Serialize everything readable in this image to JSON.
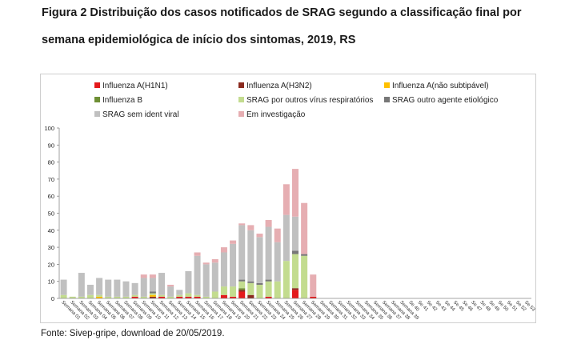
{
  "title_line1": "Figura 2 Distribuição dos casos notificados de SRAG segundo a classificação final por",
  "title_line2": "semana epidemiológica de início dos sintomas, 2019, RS",
  "source": "Fonte: Sivep-gripe, download de 20/05/2019.",
  "chart_data": {
    "type": "bar",
    "stacked": true,
    "title": "",
    "xlabel": "",
    "ylabel": "",
    "ylim": [
      0,
      100
    ],
    "yticks": [
      0,
      10,
      20,
      30,
      40,
      50,
      60,
      70,
      80,
      90,
      100
    ],
    "legend_position": "top",
    "grid": false,
    "categories": [
      "Semana 01",
      "Semana 02",
      "Semana 03",
      "Semana 04",
      "Semana 05",
      "Semana 06",
      "Semana 07",
      "Semana 08",
      "Semana 09",
      "Semana 10",
      "Semana 11",
      "Semana 12",
      "Semana 13",
      "Semana 14",
      "Semana 15",
      "Semana 16",
      "Semana 17",
      "Semana 18",
      "Semana 19",
      "Semana 20",
      "Semana 21",
      "Semana 22",
      "Semana 23",
      "Semana 24",
      "Semana 25",
      "Semana 26",
      "Semana 27",
      "Semana 28",
      "Semana 29",
      "Semana 30",
      "Semana 31",
      "Semana 32",
      "Semana 33",
      "Semana 34",
      "Semana 35",
      "Semana 36",
      "Semana 37",
      "Semana 38",
      "Semana 39",
      "Se 40",
      "Se 41",
      "Se 42",
      "Se 43",
      "Se 44",
      "Se 45",
      "Se 46",
      "Se 47",
      "Se 48",
      "Se 49",
      "Se 50",
      "Se 51",
      "Se 52",
      "Se 53"
    ],
    "series": [
      {
        "name": "Influenza A(H1N1)",
        "color": "#e41a1c",
        "values": [
          0,
          0,
          0,
          0,
          0,
          0,
          0,
          0,
          1,
          0,
          0,
          1,
          0,
          1,
          1,
          1,
          0,
          0,
          2,
          1,
          4,
          0,
          0,
          1,
          0,
          0,
          5,
          0,
          1,
          0,
          0,
          0,
          0,
          0,
          0,
          0,
          0,
          0,
          0,
          0,
          0,
          0,
          0,
          0,
          0,
          0,
          0,
          0,
          0,
          0,
          0,
          0,
          0
        ]
      },
      {
        "name": "Influenza A(H3N2)",
        "color": "#8b2a1f",
        "values": [
          0,
          0,
          0,
          0,
          0,
          0,
          0,
          0,
          0,
          0,
          1,
          0,
          0,
          0,
          0,
          0,
          0,
          0,
          0,
          0,
          1,
          2,
          0,
          0,
          0,
          0,
          1,
          0,
          0,
          0,
          0,
          0,
          0,
          0,
          0,
          0,
          0,
          0,
          0,
          0,
          0,
          0,
          0,
          0,
          0,
          0,
          0,
          0,
          0,
          0,
          0,
          0,
          0
        ]
      },
      {
        "name": "Influenza A(não subtipável)",
        "color": "#ffc000",
        "values": [
          0,
          0,
          0,
          0,
          1,
          0,
          0,
          0,
          0,
          0,
          1,
          0,
          0,
          0,
          0,
          0,
          0,
          0,
          0,
          0,
          0,
          0,
          0,
          0,
          0,
          0,
          0,
          0,
          0,
          0,
          0,
          0,
          0,
          0,
          0,
          0,
          0,
          0,
          0,
          0,
          0,
          0,
          0,
          0,
          0,
          0,
          0,
          0,
          0,
          0,
          0,
          0,
          0
        ]
      },
      {
        "name": "Influenza B",
        "color": "#6e8f35",
        "values": [
          0,
          0,
          0,
          0,
          0,
          0,
          0,
          0,
          0,
          0,
          0,
          0,
          0,
          0,
          0,
          0,
          0,
          0,
          0,
          0,
          1,
          0,
          0,
          0,
          0,
          0,
          0,
          0,
          0,
          0,
          0,
          0,
          0,
          0,
          0,
          0,
          0,
          0,
          0,
          0,
          0,
          0,
          0,
          0,
          0,
          0,
          0,
          0,
          0,
          0,
          0,
          0,
          0
        ]
      },
      {
        "name": "SRAG por outros vírus respiratórios",
        "color": "#c3dc8f",
        "values": [
          2,
          1,
          1,
          2,
          1,
          1,
          1,
          1,
          1,
          1,
          1,
          1,
          1,
          1,
          2,
          1,
          1,
          4,
          5,
          6,
          4,
          7,
          8,
          9,
          10,
          22,
          20,
          25,
          0,
          0,
          0,
          0,
          0,
          0,
          0,
          0,
          0,
          0,
          0,
          0,
          0,
          0,
          0,
          0,
          0,
          0,
          0,
          0,
          0,
          0,
          0,
          0,
          0
        ]
      },
      {
        "name": "SRAG outro agente etiológico",
        "color": "#777777",
        "values": [
          0,
          0,
          0,
          0,
          0,
          0,
          0,
          0,
          0,
          0,
          1,
          0,
          0,
          0,
          0,
          0,
          0,
          0,
          0,
          0,
          1,
          1,
          1,
          1,
          0,
          0,
          2,
          1,
          0,
          0,
          0,
          0,
          0,
          0,
          0,
          0,
          0,
          0,
          0,
          0,
          0,
          0,
          0,
          0,
          0,
          0,
          0,
          0,
          0,
          0,
          0,
          0,
          0
        ]
      },
      {
        "name": "SRAG sem ident viral",
        "color": "#c0c0c0",
        "values": [
          9,
          0,
          14,
          6,
          10,
          10,
          10,
          9,
          7,
          11,
          8,
          13,
          6,
          3,
          13,
          23,
          19,
          17,
          20,
          25,
          32,
          30,
          27,
          31,
          23,
          27,
          20,
          0,
          0,
          0,
          0,
          0,
          0,
          0,
          0,
          0,
          0,
          0,
          0,
          0,
          0,
          0,
          0,
          0,
          0,
          0,
          0,
          0,
          0,
          0,
          0,
          0,
          0
        ]
      },
      {
        "name": "Em investigação",
        "color": "#e6aeb2",
        "values": [
          0,
          0,
          0,
          0,
          0,
          0,
          0,
          0,
          0,
          2,
          2,
          0,
          1,
          0,
          0,
          2,
          1,
          2,
          3,
          2,
          1,
          3,
          2,
          4,
          8,
          18,
          28,
          30,
          13,
          0,
          0,
          0,
          0,
          0,
          0,
          0,
          0,
          0,
          0,
          0,
          0,
          0,
          0,
          0,
          0,
          0,
          0,
          0,
          0,
          0,
          0,
          0,
          0
        ]
      }
    ]
  }
}
